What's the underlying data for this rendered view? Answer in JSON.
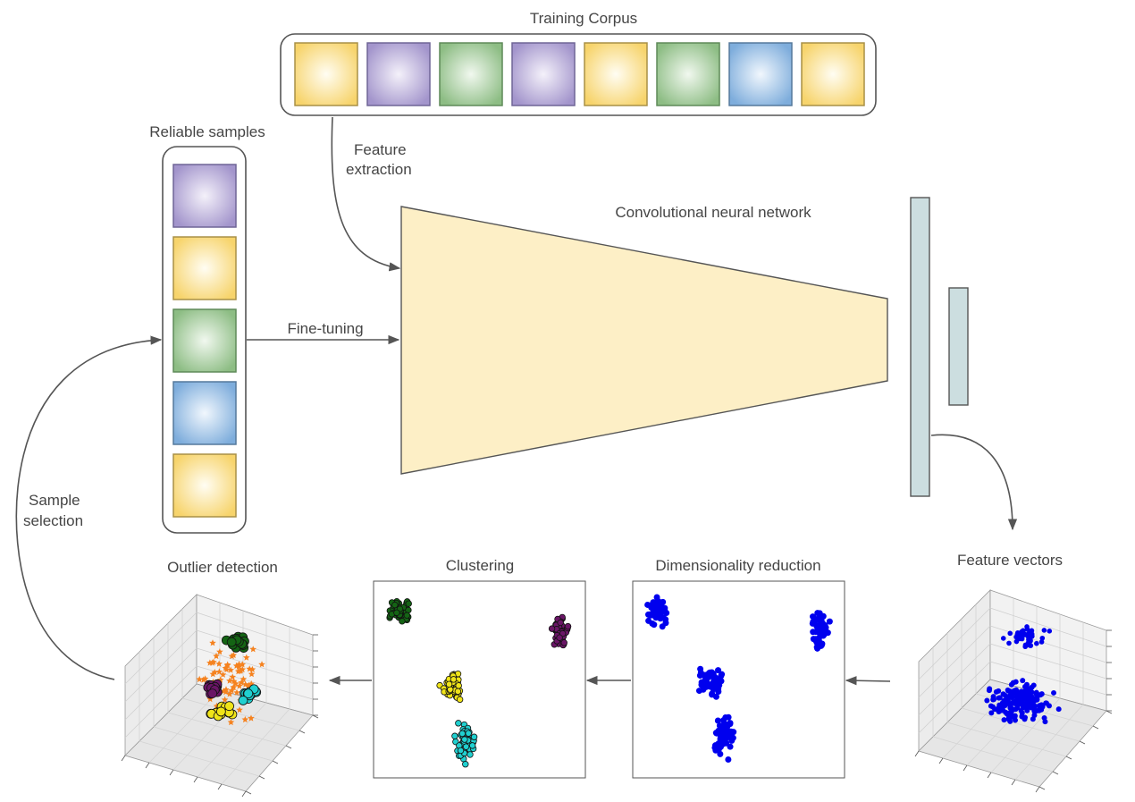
{
  "labels": {
    "training_corpus": "Training Corpus",
    "reliable_samples": "Reliable samples",
    "feature_extraction_1": "Feature",
    "feature_extraction_2": "extraction",
    "cnn": "Convolutional neural network",
    "fine_tuning": "Fine-tuning",
    "sample_selection_1": "Sample",
    "sample_selection_2": "selection",
    "outlier_detection": "Outlier detection",
    "clustering": "Clustering",
    "dimensionality_reduction": "Dimensionality reduction",
    "feature_vectors": "Feature vectors"
  },
  "training_corpus_tiles": [
    "yellow",
    "purple",
    "green",
    "purple",
    "yellow",
    "green",
    "blue",
    "yellow"
  ],
  "reliable_sample_tiles": [
    "purple",
    "yellow",
    "green",
    "blue",
    "yellow"
  ],
  "colors": {
    "tile_yellow": "#fad976",
    "tile_purple": "#a99cd0",
    "tile_green": "#93c18b",
    "tile_blue": "#83b0de",
    "cnn_fill": "#fdefc6",
    "fc_layer_fill": "#ccdee0",
    "blue_points": "#0000ee",
    "cluster_green": "#146414",
    "cluster_purple": "#6a1566",
    "cluster_yellow": "#f0e419",
    "cluster_cyan": "#20d0d0",
    "outlier_stars": "#f5821f"
  }
}
